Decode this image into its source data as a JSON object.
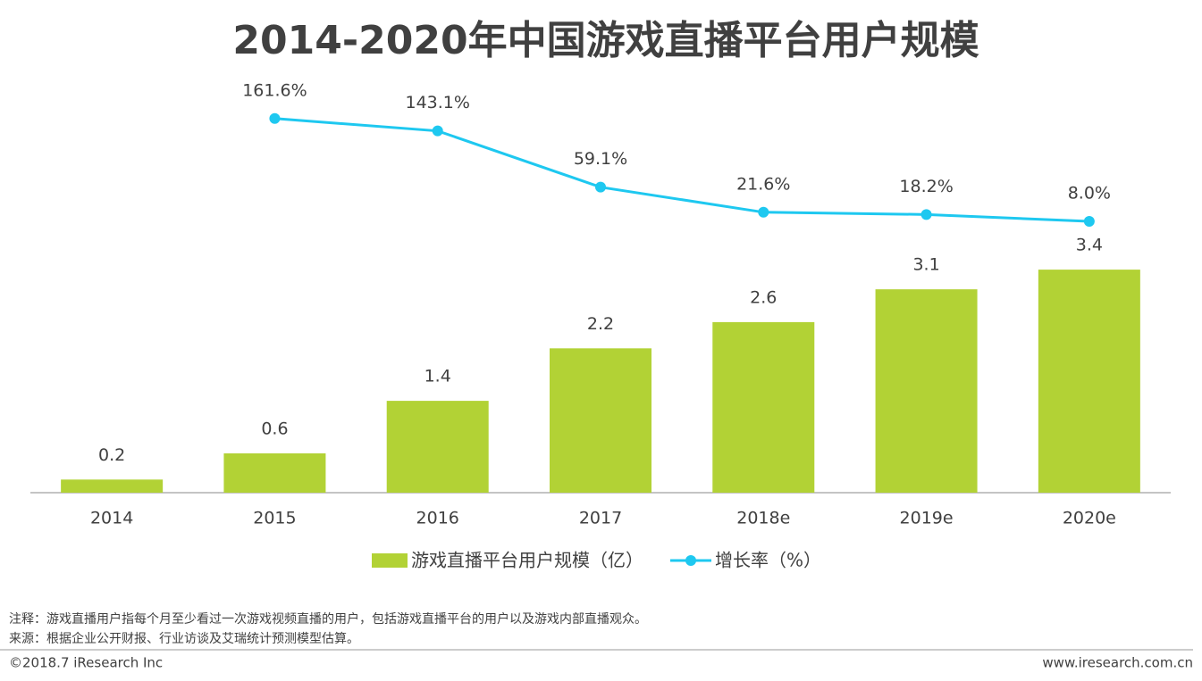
{
  "chart_data": {
    "type": "bar",
    "title": "2014-2020年中国游戏直播平台用户规模",
    "categories": [
      "2014",
      "2015",
      "2016",
      "2017",
      "2018e",
      "2019e",
      "2020e"
    ],
    "series": [
      {
        "name": "游戏直播平台用户规模（亿）",
        "type": "bar",
        "color": "#b2d235",
        "values": [
          0.2,
          0.6,
          1.4,
          2.2,
          2.6,
          3.1,
          3.4
        ]
      },
      {
        "name": "增长率（%）",
        "type": "line",
        "axis": "y2",
        "color": "#1ec8f0",
        "values": [
          null,
          161.6,
          143.1,
          59.1,
          21.6,
          18.2,
          8.0
        ],
        "value_labels": [
          null,
          "161.6%",
          "143.1%",
          "59.1%",
          "21.6%",
          "18.2%",
          "8.0%"
        ]
      }
    ],
    "ylim": [
      0,
      4
    ],
    "y2lim": [
      0,
      200
    ],
    "legend": "bottom"
  },
  "footer": {
    "note": "注释：游戏直播用户指每个月至少看过一次游戏视频直播的用户，包括游戏直播平台的用户以及游戏内部直播观众。",
    "source": "来源：根据企业公开财报、行业访谈及艾瑞统计预测模型估算。",
    "copyright": "©2018.7 iResearch Inc",
    "website": "www.iresearch.com.cn"
  }
}
